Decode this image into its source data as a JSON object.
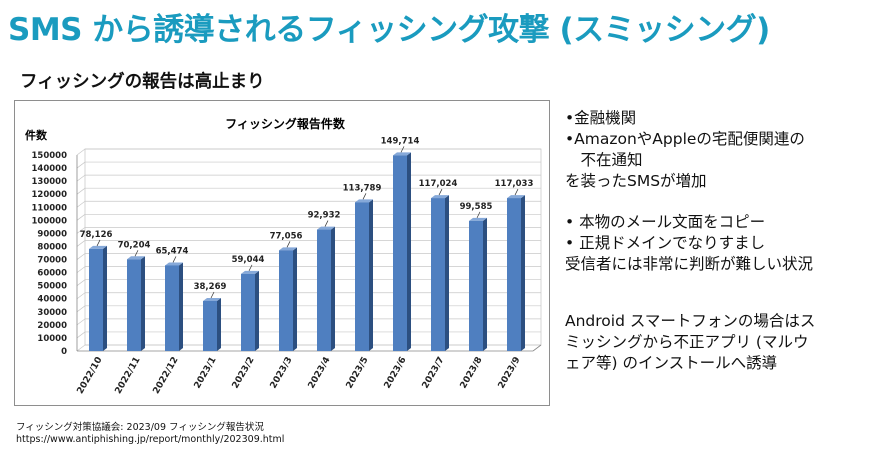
{
  "header": {
    "title": "SMS から誘導されるフィッシング攻撃 (スミッシング)",
    "subtitle": "フィッシングの報告は高止まり"
  },
  "chart_data": {
    "type": "bar",
    "title": "フィッシング報告件数",
    "ylabel": "件数",
    "xlabel": "",
    "categories": [
      "2022/10",
      "2022/11",
      "2022/12",
      "2023/1",
      "2023/2",
      "2023/3",
      "2023/4",
      "2023/5",
      "2023/6",
      "2023/7",
      "2023/8",
      "2023/9"
    ],
    "values": [
      78126,
      70204,
      65474,
      38269,
      59044,
      77056,
      92932,
      113789,
      149714,
      117024,
      99585,
      117033
    ],
    "value_labels": [
      "78,126",
      "70,204",
      "65,474",
      "38,269",
      "59,044",
      "77,056",
      "92,932",
      "113,789",
      "149,714",
      "117,024",
      "99,585",
      "117,033"
    ],
    "ylim": [
      0,
      150000
    ],
    "yticks": [
      "0",
      "10000",
      "20000",
      "30000",
      "40000",
      "50000",
      "60000",
      "70000",
      "80000",
      "90000",
      "100000",
      "110000",
      "120000",
      "130000",
      "140000",
      "150000"
    ],
    "grid": true,
    "bar_color": "#4f7fc0"
  },
  "notes": {
    "lines": [
      "•金融機関",
      "•AmazonやAppleの宅配便関連の",
      "　不在通知",
      "を装ったSMSが増加",
      "•  本物のメール文面をコピー",
      "•  正規ドメインでなりすまし",
      "受信者には非常に判断が難しい状況",
      "Android スマートフォンの場合はス",
      "ミッシングから不正アプリ (マルウ",
      "ェア等) のインストールへ誘導"
    ]
  },
  "source": {
    "line1": "フィッシング対策協議会: 2023/09 フィッシング報告状況",
    "line2": "https://www.antiphishing.jp/report/monthly/202309.html"
  }
}
